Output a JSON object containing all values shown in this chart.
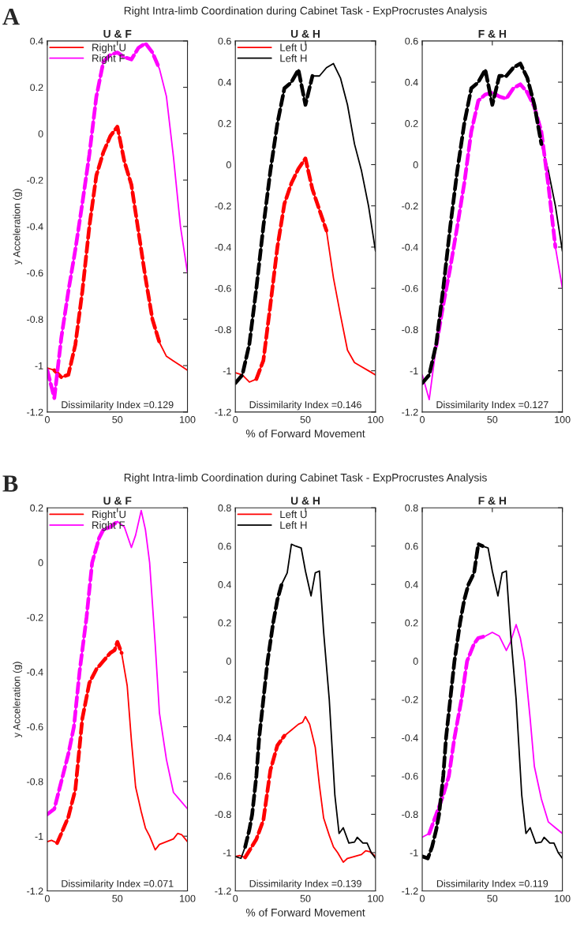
{
  "chart_data": [
    {
      "type": "line",
      "title": "U & F",
      "ylabel": "y Acceleration (g)",
      "annotations": [
        "Dissimilarity Index =0.129",
        "A"
      ],
      "legend": "top left",
      "xlim": [
        0,
        100
      ],
      "ylim": [
        -1.2,
        0.4
      ],
      "xticks": [
        0,
        50,
        100
      ],
      "yticks": [
        -1.2,
        -1,
        -0.8,
        -0.6,
        -0.4,
        -0.2,
        0,
        0.2,
        0.4
      ],
      "series": [
        {
          "name": "Right U",
          "color": "#ff0000",
          "line_style": "solid",
          "x": [
            0,
            5,
            10,
            15,
            20,
            25,
            30,
            35,
            40,
            45,
            50,
            55,
            60,
            65,
            70,
            75,
            80,
            85,
            90,
            95,
            100
          ],
          "values": [
            -1.01,
            -1.02,
            -1.05,
            -1.04,
            -0.91,
            -0.68,
            -0.4,
            -0.18,
            -0.08,
            -0.01,
            0.03,
            -0.12,
            -0.22,
            -0.42,
            -0.62,
            -0.8,
            -0.9,
            -0.96,
            -0.98,
            -1.0,
            -1.02
          ]
        },
        {
          "name": "Right F",
          "color": "#ff00ff",
          "line_style": "solid",
          "x": [
            0,
            5,
            10,
            15,
            20,
            25,
            30,
            35,
            40,
            45,
            50,
            55,
            60,
            65,
            70,
            75,
            80,
            85,
            90,
            95,
            100
          ],
          "values": [
            -1.02,
            -1.14,
            -0.88,
            -0.68,
            -0.5,
            -0.3,
            -0.09,
            0.16,
            0.31,
            0.34,
            0.35,
            0.33,
            0.32,
            0.37,
            0.39,
            0.35,
            0.28,
            0.16,
            -0.1,
            -0.4,
            -0.6
          ]
        },
        {
          "color": "#ff0000",
          "line_style": "dashed",
          "x": [
            5,
            10,
            15,
            20,
            25,
            30,
            35,
            40,
            45,
            50,
            55,
            60,
            65,
            70,
            75,
            80
          ],
          "values": [
            -1.02,
            -1.05,
            -1.04,
            -0.91,
            -0.68,
            -0.4,
            -0.18,
            -0.08,
            -0.01,
            0.03,
            -0.12,
            -0.22,
            -0.42,
            -0.62,
            -0.8,
            -0.9
          ]
        },
        {
          "color": "#ff00ff",
          "line_style": "dashed",
          "x": [
            0,
            5,
            10,
            15,
            20,
            25,
            30,
            35,
            40,
            45,
            50,
            55,
            60,
            65,
            70,
            75,
            80
          ],
          "values": [
            -1.02,
            -1.14,
            -0.88,
            -0.68,
            -0.5,
            -0.3,
            -0.09,
            0.16,
            0.31,
            0.34,
            0.35,
            0.33,
            0.32,
            0.37,
            0.39,
            0.35,
            0.28
          ]
        }
      ]
    },
    {
      "type": "line",
      "title": "U & H",
      "subtitle": "Right Intra-limb Coordination during Cabinet Task - ExpProcrustes Analysis",
      "xlabel": "% of Forward Movement",
      "annotations": [
        "Dissimilarity Index =0.146"
      ],
      "legend": "top left",
      "xlim": [
        0,
        100
      ],
      "ylim": [
        -1.2,
        0.6
      ],
      "xticks": [
        0,
        50,
        100
      ],
      "yticks": [
        -1.2,
        -1,
        -0.8,
        -0.6,
        -0.4,
        -0.2,
        0,
        0.2,
        0.4,
        0.6
      ],
      "series": [
        {
          "name": "Left U",
          "color": "#ff0000",
          "line_style": "solid",
          "x": [
            0,
            5,
            10,
            15,
            20,
            25,
            30,
            35,
            40,
            45,
            50,
            55,
            60,
            65,
            70,
            75,
            80,
            85,
            90,
            95,
            100
          ],
          "values": [
            -1.01,
            -1.02,
            -1.055,
            -1.04,
            -0.95,
            -0.68,
            -0.4,
            -0.19,
            -0.09,
            -0.02,
            0.03,
            -0.12,
            -0.22,
            -0.32,
            -0.55,
            -0.73,
            -0.9,
            -0.96,
            -0.98,
            -1.0,
            -1.02
          ]
        },
        {
          "name": "Left H",
          "color": "#000000",
          "line_style": "solid",
          "x": [
            0,
            5,
            10,
            15,
            20,
            25,
            30,
            35,
            40,
            45,
            50,
            55,
            60,
            65,
            70,
            75,
            80,
            85,
            90,
            95,
            100
          ],
          "values": [
            -1.06,
            -1.02,
            -0.87,
            -0.6,
            -0.3,
            -0.03,
            0.2,
            0.37,
            0.4,
            0.46,
            0.29,
            0.43,
            0.43,
            0.47,
            0.49,
            0.42,
            0.29,
            0.1,
            -0.03,
            -0.2,
            -0.42
          ]
        },
        {
          "color": "#000000",
          "line_style": "dashed",
          "x": [
            0,
            5,
            10,
            15,
            20,
            25,
            30,
            35,
            40,
            45,
            50,
            55
          ],
          "values": [
            -1.06,
            -1.02,
            -0.87,
            -0.6,
            -0.3,
            -0.03,
            0.2,
            0.37,
            0.4,
            0.46,
            0.29,
            0.43
          ]
        },
        {
          "color": "#ff0000",
          "line_style": "dashed",
          "x": [
            15,
            20,
            25,
            30,
            35,
            40,
            45,
            50,
            55,
            60,
            65
          ],
          "values": [
            -1.04,
            -0.95,
            -0.68,
            -0.4,
            -0.19,
            -0.09,
            -0.02,
            0.03,
            -0.12,
            -0.22,
            -0.32
          ]
        }
      ]
    },
    {
      "type": "line",
      "title": "F & H",
      "annotations": [
        "Dissimilarity Index =0.127"
      ],
      "xlim": [
        0,
        100
      ],
      "ylim": [
        -1.2,
        0.6
      ],
      "xticks": [
        0,
        50,
        100
      ],
      "yticks": [
        -1.2,
        -1,
        -0.8,
        -0.6,
        -0.4,
        -0.2,
        0,
        0.2,
        0.4,
        0.6
      ],
      "series": [
        {
          "color": "#ff00ff",
          "line_style": "solid",
          "x": [
            0,
            5,
            10,
            15,
            20,
            25,
            30,
            35,
            40,
            45,
            50,
            55,
            60,
            65,
            70,
            75,
            80,
            85,
            90,
            95,
            100
          ],
          "values": [
            -1.02,
            -1.14,
            -0.88,
            -0.68,
            -0.5,
            -0.3,
            -0.09,
            0.16,
            0.31,
            0.34,
            0.35,
            0.33,
            0.32,
            0.37,
            0.39,
            0.35,
            0.28,
            0.16,
            -0.1,
            -0.4,
            -0.6
          ]
        },
        {
          "color": "#000000",
          "line_style": "solid",
          "x": [
            0,
            5,
            10,
            15,
            20,
            25,
            30,
            35,
            40,
            45,
            50,
            55,
            60,
            65,
            70,
            75,
            80,
            85,
            90,
            95,
            100
          ],
          "values": [
            -1.06,
            -1.02,
            -0.87,
            -0.6,
            -0.3,
            -0.03,
            0.2,
            0.37,
            0.4,
            0.46,
            0.29,
            0.43,
            0.43,
            0.47,
            0.49,
            0.42,
            0.29,
            0.1,
            -0.03,
            -0.2,
            -0.42
          ]
        },
        {
          "color": "#ff00ff",
          "line_style": "dashed",
          "x": [
            10,
            15,
            20,
            25,
            30,
            35,
            40,
            45,
            50,
            55,
            60,
            65,
            70,
            75,
            80,
            85,
            90,
            95
          ],
          "values": [
            -0.88,
            -0.68,
            -0.5,
            -0.3,
            -0.09,
            0.16,
            0.31,
            0.34,
            0.35,
            0.33,
            0.32,
            0.37,
            0.39,
            0.35,
            0.28,
            0.16,
            -0.1,
            -0.4
          ]
        },
        {
          "color": "#000000",
          "line_style": "dashed",
          "x": [
            0,
            5,
            10,
            15,
            20,
            25,
            30,
            35,
            40,
            45,
            50,
            55,
            60,
            65,
            70,
            75,
            80,
            85
          ],
          "values": [
            -1.06,
            -1.02,
            -0.87,
            -0.6,
            -0.3,
            -0.03,
            0.2,
            0.37,
            0.4,
            0.46,
            0.29,
            0.43,
            0.43,
            0.47,
            0.49,
            0.42,
            0.29,
            0.1
          ]
        }
      ]
    },
    {
      "type": "line",
      "title": "U & F",
      "ylabel": "y Acceleration (g)",
      "annotations": [
        "Dissimilarity Index =0.071",
        "B"
      ],
      "legend": "top left",
      "xlim": [
        0,
        100
      ],
      "ylim": [
        -1.2,
        0.2
      ],
      "xticks": [
        0,
        50,
        100
      ],
      "yticks": [
        -1.2,
        -1,
        -0.8,
        -0.6,
        -0.4,
        -0.2,
        0,
        0.2
      ],
      "series": [
        {
          "name": "Right U",
          "color": "#ff0000",
          "line_style": "solid",
          "x": [
            0,
            3,
            7,
            10,
            15,
            20,
            25,
            30,
            35,
            40,
            45,
            48,
            50,
            53,
            57,
            60,
            63,
            67,
            70,
            73,
            77,
            80,
            85,
            90,
            93,
            96,
            100
          ],
          "values": [
            -1.02,
            -1.015,
            -1.025,
            -0.99,
            -0.93,
            -0.83,
            -0.57,
            -0.44,
            -0.39,
            -0.36,
            -0.33,
            -0.32,
            -0.29,
            -0.33,
            -0.45,
            -0.65,
            -0.82,
            -0.91,
            -0.97,
            -1.0,
            -1.05,
            -1.03,
            -1.02,
            -1.01,
            -0.99,
            -0.995,
            -1.02
          ]
        },
        {
          "name": "Right F",
          "color": "#ff00ff",
          "line_style": "solid",
          "x": [
            0,
            5,
            10,
            15,
            19,
            23,
            28,
            32,
            37,
            40,
            45,
            50,
            55,
            60,
            63,
            67,
            70,
            73,
            77,
            80,
            85,
            90,
            95,
            100
          ],
          "values": [
            -0.92,
            -0.9,
            -0.8,
            -0.7,
            -0.6,
            -0.4,
            -0.2,
            0.0,
            0.09,
            0.12,
            0.13,
            0.15,
            0.13,
            0.055,
            0.1,
            0.19,
            0.12,
            0.0,
            -0.3,
            -0.55,
            -0.72,
            -0.84,
            -0.87,
            -0.9
          ]
        },
        {
          "color": "#ff0000",
          "line_style": "dashed",
          "x": [
            7,
            10,
            15,
            20,
            25,
            30,
            35,
            40,
            45,
            48,
            50,
            53
          ],
          "values": [
            -1.025,
            -0.99,
            -0.93,
            -0.83,
            -0.57,
            -0.44,
            -0.39,
            -0.36,
            -0.33,
            -0.32,
            -0.29,
            -0.33
          ]
        },
        {
          "color": "#ff00ff",
          "line_style": "dashed",
          "x": [
            0,
            5,
            10,
            15,
            19,
            23,
            28,
            32,
            37,
            40,
            45,
            50
          ],
          "values": [
            -0.92,
            -0.9,
            -0.8,
            -0.7,
            -0.6,
            -0.4,
            -0.2,
            0.0,
            0.09,
            0.12,
            0.13,
            0.15
          ]
        }
      ]
    },
    {
      "type": "line",
      "title": "U & H",
      "subtitle": "Right Intra-limb Coordination during Cabinet Task - ExpProcrustes Analysis",
      "xlabel": "% of Forward Movement",
      "annotations": [
        "Dissimilarity Index =0.139"
      ],
      "legend": "top left",
      "xlim": [
        0,
        100
      ],
      "ylim": [
        -1.2,
        0.8
      ],
      "xticks": [
        0,
        50,
        100
      ],
      "yticks": [
        -1.2,
        -1,
        -0.8,
        -0.6,
        -0.4,
        -0.2,
        0,
        0.2,
        0.4,
        0.6,
        0.8
      ],
      "series": [
        {
          "name": "Left U",
          "color": "#ff0000",
          "line_style": "solid",
          "x": [
            0,
            3,
            7,
            10,
            15,
            20,
            25,
            30,
            35,
            40,
            45,
            48,
            50,
            53,
            57,
            60,
            63,
            67,
            70,
            73,
            77,
            80,
            85,
            90,
            93,
            96,
            100
          ],
          "values": [
            -1.02,
            -1.015,
            -1.025,
            -0.99,
            -0.93,
            -0.83,
            -0.57,
            -0.44,
            -0.39,
            -0.36,
            -0.33,
            -0.32,
            -0.29,
            -0.33,
            -0.45,
            -0.65,
            -0.82,
            -0.91,
            -0.97,
            -1.0,
            -1.05,
            -1.03,
            -1.02,
            -1.01,
            -0.99,
            -0.995,
            -1.02
          ]
        },
        {
          "name": "Left H",
          "color": "#000000",
          "line_style": "solid",
          "x": [
            0,
            4,
            7,
            10,
            12,
            15,
            17,
            20,
            23,
            27,
            30,
            33,
            37,
            40,
            43,
            47,
            50,
            54,
            57,
            60,
            63,
            67,
            71,
            74,
            77,
            81,
            85,
            87,
            91,
            94,
            97,
            100
          ],
          "values": [
            -1.02,
            -1.03,
            -0.97,
            -0.88,
            -0.8,
            -0.6,
            -0.4,
            -0.2,
            0.0,
            0.2,
            0.32,
            0.4,
            0.46,
            0.61,
            0.6,
            0.59,
            0.47,
            0.34,
            0.46,
            0.47,
            0.15,
            -0.2,
            -0.7,
            -0.9,
            -0.87,
            -0.95,
            -0.945,
            -0.92,
            -0.95,
            -0.95,
            -1.0,
            -1.03
          ]
        },
        {
          "color": "#000000",
          "line_style": "dashed",
          "x": [
            7,
            10,
            12,
            15,
            17,
            20,
            23,
            27,
            30,
            33
          ],
          "values": [
            -0.97,
            -0.88,
            -0.8,
            -0.6,
            -0.4,
            -0.2,
            0.0,
            0.2,
            0.32,
            0.4
          ]
        },
        {
          "color": "#ff0000",
          "line_style": "dashed",
          "x": [
            7,
            10,
            15,
            20,
            25,
            30,
            35
          ],
          "values": [
            -1.025,
            -0.99,
            -0.93,
            -0.83,
            -0.57,
            -0.44,
            -0.39
          ]
        }
      ]
    },
    {
      "type": "line",
      "title": "F & H",
      "annotations": [
        "Dissimilarity Index =0.119"
      ],
      "xlim": [
        0,
        100
      ],
      "ylim": [
        -1.2,
        0.8
      ],
      "xticks": [
        0,
        50,
        100
      ],
      "yticks": [
        -1.2,
        -1,
        -0.8,
        -0.6,
        -0.4,
        -0.2,
        0,
        0.2,
        0.4,
        0.6,
        0.8
      ],
      "series": [
        {
          "color": "#ff00ff",
          "line_style": "solid",
          "x": [
            0,
            5,
            10,
            15,
            19,
            23,
            28,
            32,
            37,
            40,
            45,
            50,
            55,
            60,
            63,
            67,
            70,
            73,
            77,
            80,
            85,
            90,
            95,
            100
          ],
          "values": [
            -0.92,
            -0.9,
            -0.8,
            -0.7,
            -0.6,
            -0.4,
            -0.2,
            0.0,
            0.09,
            0.12,
            0.13,
            0.15,
            0.13,
            0.055,
            0.1,
            0.19,
            0.12,
            0.0,
            -0.3,
            -0.55,
            -0.72,
            -0.84,
            -0.87,
            -0.9
          ]
        },
        {
          "color": "#000000",
          "line_style": "solid",
          "x": [
            0,
            4,
            7,
            10,
            12,
            15,
            17,
            20,
            23,
            27,
            30,
            33,
            37,
            40,
            43,
            47,
            50,
            54,
            57,
            60,
            63,
            67,
            71,
            74,
            77,
            81,
            85,
            87,
            91,
            94,
            97,
            100
          ],
          "values": [
            -1.02,
            -1.03,
            -0.97,
            -0.88,
            -0.8,
            -0.6,
            -0.4,
            -0.2,
            0.0,
            0.2,
            0.32,
            0.4,
            0.46,
            0.61,
            0.6,
            0.59,
            0.47,
            0.34,
            0.46,
            0.47,
            0.15,
            -0.2,
            -0.7,
            -0.9,
            -0.87,
            -0.95,
            -0.945,
            -0.92,
            -0.95,
            -0.95,
            -1.0,
            -1.03
          ]
        },
        {
          "color": "#ff00ff",
          "line_style": "dashed",
          "x": [
            5,
            10,
            15,
            19,
            23,
            28,
            32,
            37,
            40,
            45
          ],
          "values": [
            -0.9,
            -0.8,
            -0.7,
            -0.6,
            -0.4,
            -0.2,
            0.0,
            0.09,
            0.12,
            0.13
          ]
        },
        {
          "color": "#000000",
          "line_style": "dashed",
          "x": [
            0,
            4,
            7,
            10,
            12,
            15,
            17,
            20,
            23,
            27,
            30,
            33,
            37,
            40,
            43
          ],
          "values": [
            -1.02,
            -1.03,
            -0.97,
            -0.88,
            -0.8,
            -0.6,
            -0.4,
            -0.2,
            0.0,
            0.2,
            0.32,
            0.4,
            0.46,
            0.61,
            0.6
          ]
        }
      ]
    }
  ]
}
